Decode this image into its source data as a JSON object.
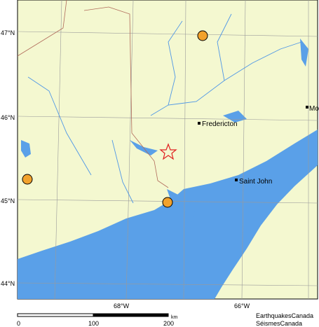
{
  "map": {
    "lat_labels": [
      "47°N",
      "46°N",
      "45°N",
      "44°N"
    ],
    "lon_labels": [
      "68°W",
      "66°W"
    ],
    "places": [
      "Fredericton",
      "Saint John",
      "Mo"
    ]
  },
  "scale_bar": {
    "ticks": [
      0,
      100,
      200
    ],
    "unit": "km"
  },
  "credits": [
    "EarthquakesCanada",
    "SéismesCanada"
  ]
}
